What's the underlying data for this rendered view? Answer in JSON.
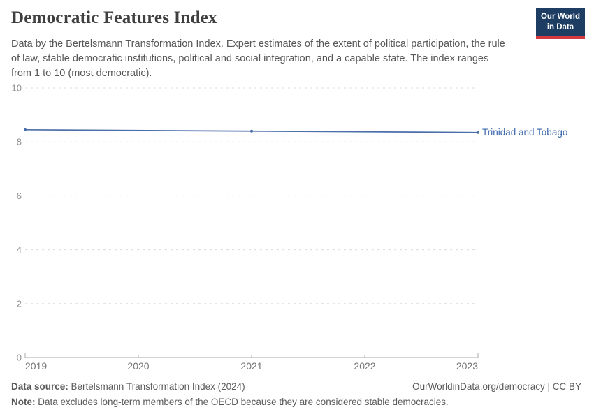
{
  "header": {
    "title": "Democratic Features Index",
    "subtitle_lines": [
      "Data by the Bertelsmann Transformation Index. Expert estimates of the extent of political participation, the rule",
      "of law, stable democratic institutions, political and social integration, and a capable state. The index ranges",
      "from 1 to 10 (most democratic)."
    ],
    "logo": {
      "line1": "Our World",
      "line2": "in Data",
      "bg_color": "#1d3d63",
      "accent_color": "#d6383f"
    }
  },
  "chart_data": {
    "type": "line",
    "title": "Democratic Features Index",
    "x": [
      2019,
      2021,
      2023
    ],
    "series": [
      {
        "name": "Trinidad and Tobago",
        "values": [
          8.45,
          8.4,
          8.35
        ],
        "color": "#4c6ea9"
      }
    ],
    "label_color": "#3c68ae",
    "xlabel": "",
    "ylabel": "",
    "xlim": [
      2019,
      2023
    ],
    "ylim": [
      0,
      10
    ],
    "x_ticks": [
      2019,
      2020,
      2021,
      2022,
      2023
    ],
    "y_ticks": [
      0,
      2,
      4,
      6,
      8,
      10
    ],
    "grid": "horizontal-dashed",
    "legend_position": "line-end-label",
    "grid_color": "#dcdcdc",
    "axis_color": "#a8a8a8",
    "tick_label_color_y": "#8f8f8f",
    "tick_label_color_x": "#767676"
  },
  "footer": {
    "source_label": "Data source:",
    "source_text": " Bertelsmann Transformation Index (2024)",
    "rights": "OurWorldinData.org/democracy | CC BY",
    "note_label": "Note:",
    "note_text": " Data excludes long-term members of the OECD because they are considered stable democracies."
  }
}
